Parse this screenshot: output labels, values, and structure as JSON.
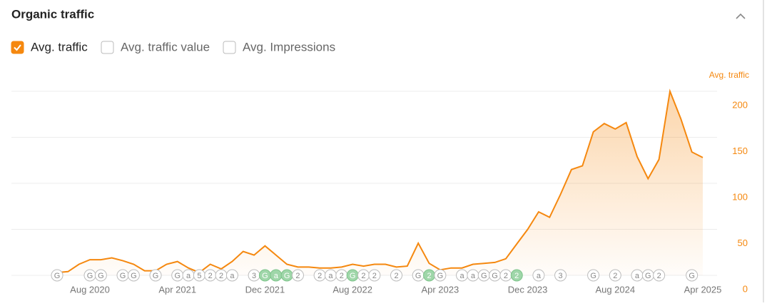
{
  "header": {
    "title": "Organic traffic"
  },
  "toggles": [
    {
      "label": "Avg. traffic",
      "checked": true
    },
    {
      "label": "Avg. traffic value",
      "checked": false
    },
    {
      "label": "Avg. Impressions",
      "checked": false
    }
  ],
  "chart_data": {
    "type": "area",
    "y_axis_label": "Avg. traffic",
    "color": "#f5880f",
    "categories": [
      null,
      null,
      null,
      "Aug 2020",
      null,
      null,
      null,
      null,
      null,
      null,
      null,
      "Apr 2021",
      null,
      null,
      null,
      null,
      null,
      null,
      null,
      "Dec 2021",
      null,
      null,
      null,
      null,
      null,
      null,
      null,
      "Aug 2022",
      null,
      null,
      null,
      null,
      null,
      null,
      null,
      "Apr 2023",
      null,
      null,
      null,
      null,
      null,
      null,
      null,
      "Dec 2023",
      null,
      null,
      null,
      null,
      null,
      null,
      null,
      "Aug 2024",
      null,
      null,
      null,
      null,
      null,
      null,
      null,
      "Apr 2025"
    ],
    "values": [
      3,
      4,
      12,
      17,
      17,
      19,
      16,
      12,
      5,
      5,
      12,
      15,
      8,
      3,
      12,
      7,
      15,
      26,
      22,
      32,
      22,
      12,
      9,
      9,
      8,
      8,
      9,
      12,
      10,
      12,
      12,
      9,
      10,
      35,
      13,
      6,
      8,
      8,
      12,
      13,
      14,
      18,
      34,
      50,
      69,
      63,
      88,
      115,
      119,
      156,
      165,
      159,
      166,
      129,
      105,
      126,
      200,
      170,
      134,
      128
    ],
    "ylim": [
      0,
      200
    ],
    "yticks": [
      0,
      50,
      100,
      150,
      200
    ],
    "grid": true,
    "markers": [
      {
        "x": 0,
        "label": "G"
      },
      {
        "x": 3,
        "label": "G"
      },
      {
        "x": 4,
        "label": "G"
      },
      {
        "x": 6,
        "label": "G"
      },
      {
        "x": 7,
        "label": "G"
      },
      {
        "x": 9,
        "label": "G"
      },
      {
        "x": 11,
        "label": "G"
      },
      {
        "x": 12,
        "label": "a"
      },
      {
        "x": 13,
        "label": "5"
      },
      {
        "x": 14,
        "label": "2"
      },
      {
        "x": 15,
        "label": "2"
      },
      {
        "x": 16,
        "label": "a"
      },
      {
        "x": 18,
        "label": "3"
      },
      {
        "x": 19,
        "label": "G",
        "highlight": true
      },
      {
        "x": 20,
        "label": "a",
        "highlight": true
      },
      {
        "x": 21,
        "label": "G",
        "highlight": true
      },
      {
        "x": 22,
        "label": "2"
      },
      {
        "x": 24,
        "label": "2"
      },
      {
        "x": 25,
        "label": "a"
      },
      {
        "x": 26,
        "label": "2"
      },
      {
        "x": 27,
        "label": "G",
        "highlight": true
      },
      {
        "x": 28,
        "label": "2"
      },
      {
        "x": 29,
        "label": "2"
      },
      {
        "x": 31,
        "label": "2"
      },
      {
        "x": 33,
        "label": "G"
      },
      {
        "x": 34,
        "label": "2",
        "highlight": true
      },
      {
        "x": 35,
        "label": "G"
      },
      {
        "x": 37,
        "label": "a"
      },
      {
        "x": 38,
        "label": "a"
      },
      {
        "x": 39,
        "label": "G"
      },
      {
        "x": 40,
        "label": "G"
      },
      {
        "x": 41,
        "label": "2"
      },
      {
        "x": 42,
        "label": "2",
        "highlight": true
      },
      {
        "x": 44,
        "label": "a"
      },
      {
        "x": 46,
        "label": "3"
      },
      {
        "x": 49,
        "label": "G"
      },
      {
        "x": 51,
        "label": "2"
      },
      {
        "x": 53,
        "label": "a"
      },
      {
        "x": 54,
        "label": "G"
      },
      {
        "x": 55,
        "label": "2"
      },
      {
        "x": 58,
        "label": "G"
      }
    ]
  }
}
